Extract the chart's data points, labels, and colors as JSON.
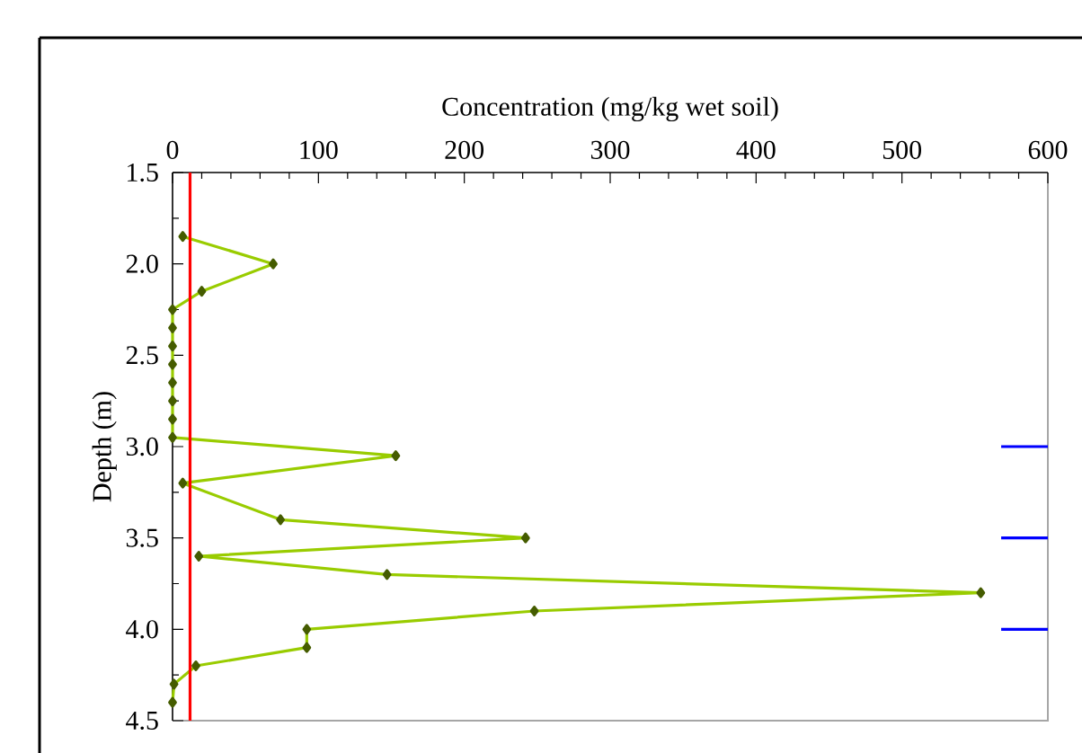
{
  "chart_data": {
    "type": "line",
    "xlabel": "Concentration (mg/kg wet soil)",
    "ylabel": "Depth (m)",
    "xlim": [
      0,
      600
    ],
    "xticks": [
      0,
      100,
      200,
      300,
      400,
      500,
      600
    ],
    "ylim": [
      4.5,
      1.5
    ],
    "yticks": [
      1.5,
      {
        "value": 2,
        "label": "2.0"
      },
      2.5,
      {
        "value": 3,
        "label": "3.0"
      },
      3.5,
      {
        "value": 4,
        "label": "4.0"
      },
      4.5
    ],
    "marker": "diamond",
    "line_style": "solid",
    "series": [
      {
        "color": "#99cc00",
        "x": [
          7,
          69,
          20,
          0,
          0,
          0,
          0,
          0,
          0,
          0,
          0,
          153,
          7,
          74,
          242,
          18,
          147,
          554,
          248,
          92,
          92,
          16,
          1,
          0
        ],
        "values": [
          1.85,
          2.0,
          2.15,
          2.25,
          2.35,
          2.45,
          2.55,
          2.65,
          2.75,
          2.85,
          2.95,
          3.05,
          3.2,
          3.4,
          3.5,
          3.6,
          3.7,
          3.8,
          3.9,
          4.0,
          4.1,
          4.2,
          4.3,
          4.4
        ]
      },
      {
        "color": "#0000ff",
        "marker": "none",
        "x": [
          568,
          600
        ],
        "values": [
          3.0,
          3.0
        ]
      },
      {
        "color": "#0000ff",
        "marker": "none",
        "x": [
          568,
          600
        ],
        "values": [
          3.5,
          3.5
        ]
      },
      {
        "color": "#0000ff",
        "marker": "none",
        "x": [
          568,
          600
        ],
        "values": [
          4.0,
          4.0
        ]
      }
    ],
    "ref_lines": [
      {
        "axis": "x",
        "value": 12,
        "color": "#ff0000"
      }
    ]
  }
}
